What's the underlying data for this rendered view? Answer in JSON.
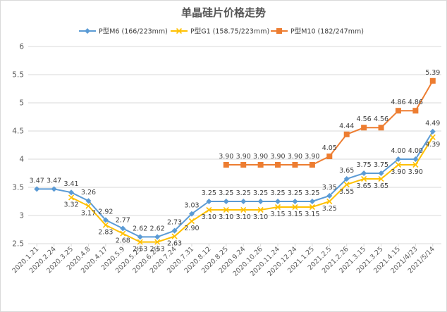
{
  "chart_data": {
    "type": "line",
    "title": "单晶硅片价格走势",
    "categories": [
      "2020.1.21",
      "2020.2.24",
      "2020.3.25",
      "2020.4.8",
      "2020.4.17",
      "2020.5.9",
      "2020.5.25",
      "2020.6.25",
      "2020.7.24",
      "2020.7.31",
      "2020.8.12",
      "2020.8.25",
      "2020.9.24",
      "2020.10.26",
      "2020.11.24",
      "2020.12.24",
      "2021.1.25",
      "2021.2.5",
      "2021.2.26",
      "2021.3.15",
      "2021.3.25",
      "2021.4.15",
      "2021/4/23",
      "2021/5/14"
    ],
    "series": [
      {
        "name": "P型M6 (166/223mm)",
        "color": "#5b9bd5",
        "marker": "diamond",
        "values": [
          3.47,
          3.47,
          3.41,
          3.26,
          2.92,
          2.77,
          2.62,
          2.62,
          2.73,
          3.03,
          3.25,
          3.25,
          3.25,
          3.25,
          3.25,
          3.25,
          3.25,
          3.35,
          3.65,
          3.75,
          3.75,
          4.0,
          4.0,
          4.49
        ],
        "labels": [
          "3.47",
          "3.47",
          "3.41",
          "3.26",
          "2.92",
          "2.77",
          "2.62",
          "2.62",
          "2.73",
          "3.03",
          "3.25",
          "3.25",
          "3.25",
          "3.25",
          "3.25",
          "3.25",
          "3.25",
          "3.35",
          "3.65",
          "3.75",
          "3.75",
          "4.00",
          "4.00",
          "4.49"
        ]
      },
      {
        "name": "P型G1 (158.75/223mm)",
        "color": "#ffc000",
        "marker": "cross",
        "values": [
          null,
          null,
          3.32,
          3.17,
          2.83,
          2.68,
          2.53,
          2.53,
          2.63,
          2.9,
          3.1,
          3.1,
          3.1,
          3.1,
          3.15,
          3.15,
          3.15,
          3.25,
          3.55,
          3.65,
          3.65,
          3.9,
          3.9,
          4.39
        ],
        "labels": [
          null,
          null,
          "3.32",
          "3.17",
          "2.83",
          "2.68",
          "2.53",
          "2.53",
          "2.63",
          "2.90",
          "3.10",
          "3.10",
          "3.10",
          "3.10",
          "3.15",
          "3.15",
          "3.15",
          "3.25",
          "3.55",
          "3.65",
          "3.65",
          "3.90",
          "3.90",
          "4.39"
        ]
      },
      {
        "name": "P型M10 (182/247mm)",
        "color": "#ed7d31",
        "marker": "square",
        "values": [
          null,
          null,
          null,
          null,
          null,
          null,
          null,
          null,
          null,
          null,
          null,
          3.9,
          3.9,
          3.9,
          3.9,
          3.9,
          3.9,
          4.05,
          4.44,
          4.56,
          4.56,
          4.86,
          4.86,
          5.39
        ],
        "labels": [
          null,
          null,
          null,
          null,
          null,
          null,
          null,
          null,
          null,
          null,
          null,
          "3.90",
          "3.90",
          "3.90",
          "3.90",
          "3.90",
          "3.90",
          "4.05",
          "4.44",
          "4.56",
          "4.56",
          "4.86",
          "4.86",
          "5.39"
        ]
      }
    ],
    "yticks": [
      "2.5",
      "3",
      "3.5",
      "4",
      "4.5",
      "5",
      "5.5",
      "6"
    ],
    "ylim": [
      2.5,
      6
    ],
    "grid": true,
    "legend_position": "top"
  }
}
